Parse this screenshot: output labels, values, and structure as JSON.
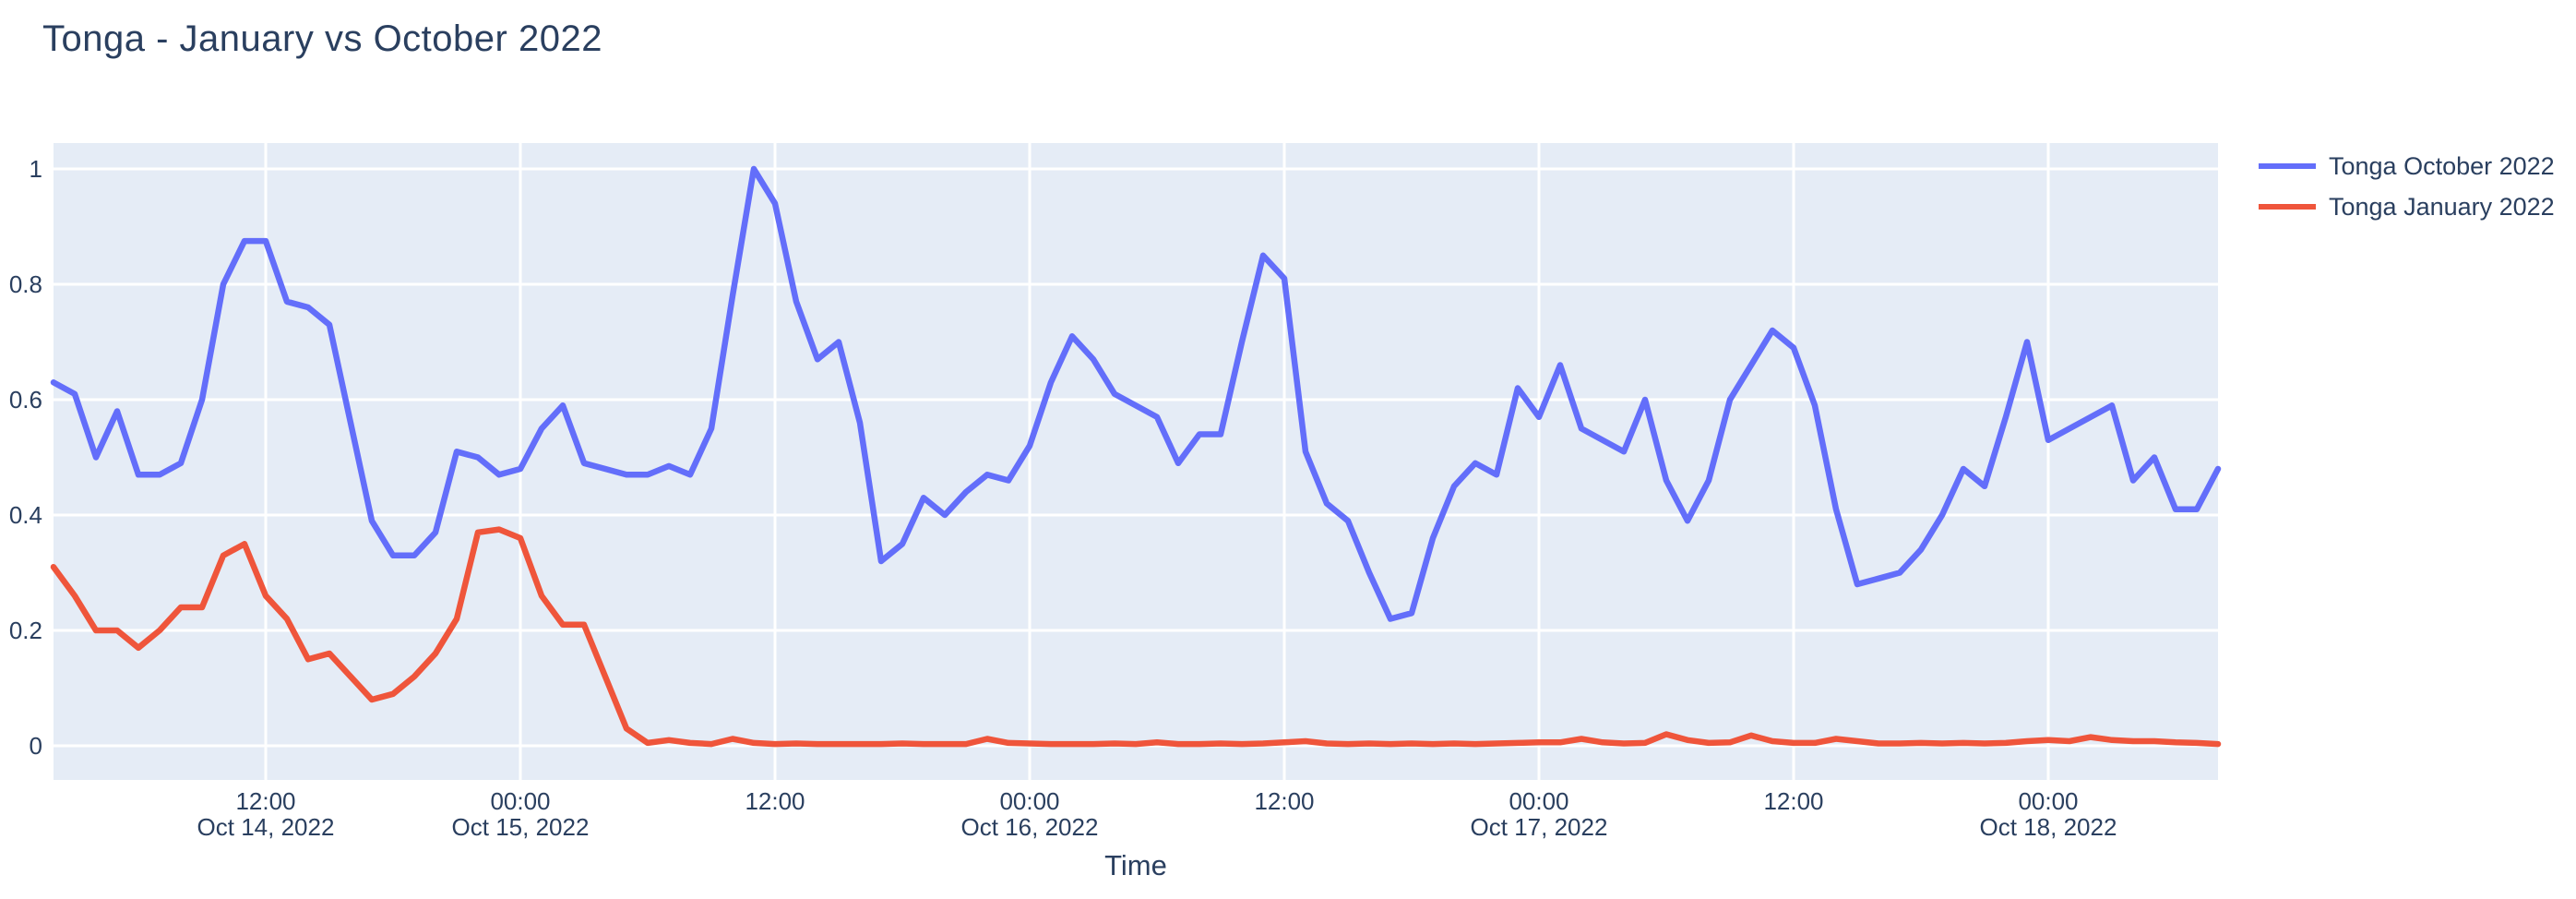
{
  "figure": {
    "title": "Tonga - January vs October 2022",
    "x_axis_title": "Time"
  },
  "legend": {
    "items": [
      {
        "label": "Tonga October 2022",
        "color": "#636EFA"
      },
      {
        "label": "Tonga January 2022",
        "color": "#EF553B"
      }
    ]
  },
  "colors": {
    "background": "#FFFFFF",
    "plot_background": "#E5ECF6",
    "grid": "#FFFFFF",
    "text": "#2a3f5f",
    "series_october": "#636EFA",
    "series_january": "#EF553B"
  },
  "chart_data": {
    "type": "line",
    "title": "Tonga - January vs October 2022",
    "xlabel": "Time",
    "ylabel": "",
    "ylim": [
      -0.059,
      1.045
    ],
    "grid": true,
    "legend_position": "right",
    "x_unit": "hourly timestamps, Oct 14 2022 02:00 - Oct 18 2022 08:00",
    "x": [
      "Oct 14 02:00",
      "Oct 14 03:00",
      "Oct 14 04:00",
      "Oct 14 05:00",
      "Oct 14 06:00",
      "Oct 14 07:00",
      "Oct 14 08:00",
      "Oct 14 09:00",
      "Oct 14 10:00",
      "Oct 14 11:00",
      "Oct 14 12:00",
      "Oct 14 13:00",
      "Oct 14 14:00",
      "Oct 14 15:00",
      "Oct 14 16:00",
      "Oct 14 17:00",
      "Oct 14 18:00",
      "Oct 14 19:00",
      "Oct 14 20:00",
      "Oct 14 21:00",
      "Oct 14 22:00",
      "Oct 14 23:00",
      "Oct 15 00:00",
      "Oct 15 01:00",
      "Oct 15 02:00",
      "Oct 15 03:00",
      "Oct 15 04:00",
      "Oct 15 05:00",
      "Oct 15 06:00",
      "Oct 15 07:00",
      "Oct 15 08:00",
      "Oct 15 09:00",
      "Oct 15 10:00",
      "Oct 15 11:00",
      "Oct 15 12:00",
      "Oct 15 13:00",
      "Oct 15 14:00",
      "Oct 15 15:00",
      "Oct 15 16:00",
      "Oct 15 17:00",
      "Oct 15 18:00",
      "Oct 15 19:00",
      "Oct 15 20:00",
      "Oct 15 21:00",
      "Oct 15 22:00",
      "Oct 15 23:00",
      "Oct 16 00:00",
      "Oct 16 01:00",
      "Oct 16 02:00",
      "Oct 16 03:00",
      "Oct 16 04:00",
      "Oct 16 05:00",
      "Oct 16 06:00",
      "Oct 16 07:00",
      "Oct 16 08:00",
      "Oct 16 09:00",
      "Oct 16 10:00",
      "Oct 16 11:00",
      "Oct 16 12:00",
      "Oct 16 13:00",
      "Oct 16 14:00",
      "Oct 16 15:00",
      "Oct 16 16:00",
      "Oct 16 17:00",
      "Oct 16 18:00",
      "Oct 16 19:00",
      "Oct 16 20:00",
      "Oct 16 21:00",
      "Oct 16 22:00",
      "Oct 16 23:00",
      "Oct 17 00:00",
      "Oct 17 01:00",
      "Oct 17 02:00",
      "Oct 17 03:00",
      "Oct 17 04:00",
      "Oct 17 05:00",
      "Oct 17 06:00",
      "Oct 17 07:00",
      "Oct 17 08:00",
      "Oct 17 09:00",
      "Oct 17 10:00",
      "Oct 17 11:00",
      "Oct 17 12:00",
      "Oct 17 13:00",
      "Oct 17 14:00",
      "Oct 17 15:00",
      "Oct 17 16:00",
      "Oct 17 17:00",
      "Oct 17 18:00",
      "Oct 17 19:00",
      "Oct 17 20:00",
      "Oct 17 21:00",
      "Oct 17 22:00",
      "Oct 17 23:00",
      "Oct 18 00:00",
      "Oct 18 01:00",
      "Oct 18 02:00",
      "Oct 18 03:00",
      "Oct 18 04:00",
      "Oct 18 05:00",
      "Oct 18 06:00",
      "Oct 18 07:00",
      "Oct 18 08:00"
    ],
    "series": [
      {
        "name": "Tonga October 2022",
        "color": "#636EFA",
        "values": [
          0.63,
          0.61,
          0.5,
          0.58,
          0.47,
          0.47,
          0.49,
          0.6,
          0.8,
          0.875,
          0.875,
          0.77,
          0.76,
          0.73,
          0.56,
          0.39,
          0.33,
          0.33,
          0.37,
          0.51,
          0.5,
          0.47,
          0.48,
          0.55,
          0.59,
          0.49,
          0.48,
          0.47,
          0.47,
          0.485,
          0.47,
          0.55,
          0.78,
          1.0,
          0.94,
          0.77,
          0.67,
          0.7,
          0.56,
          0.32,
          0.35,
          0.43,
          0.4,
          0.44,
          0.47,
          0.46,
          0.52,
          0.63,
          0.71,
          0.67,
          0.61,
          0.59,
          0.57,
          0.49,
          0.54,
          0.54,
          0.7,
          0.85,
          0.81,
          0.51,
          0.42,
          0.39,
          0.3,
          0.22,
          0.23,
          0.36,
          0.45,
          0.49,
          0.47,
          0.62,
          0.57,
          0.66,
          0.55,
          0.53,
          0.51,
          0.6,
          0.46,
          0.39,
          0.46,
          0.6,
          0.66,
          0.72,
          0.69,
          0.59,
          0.41,
          0.28,
          0.29,
          0.3,
          0.34,
          0.4,
          0.48,
          0.45,
          0.57,
          0.7,
          0.53,
          0.55,
          0.57,
          0.59,
          0.46,
          0.5,
          0.41,
          0.41,
          0.48
        ]
      },
      {
        "name": "Tonga January 2022",
        "color": "#EF553B",
        "values": [
          0.31,
          0.26,
          0.2,
          0.2,
          0.17,
          0.2,
          0.24,
          0.24,
          0.33,
          0.35,
          0.26,
          0.22,
          0.15,
          0.16,
          0.12,
          0.08,
          0.09,
          0.12,
          0.16,
          0.22,
          0.37,
          0.375,
          0.36,
          0.26,
          0.21,
          0.21,
          0.12,
          0.03,
          0.005,
          0.01,
          0.005,
          0.003,
          0.012,
          0.005,
          0.003,
          0.004,
          0.003,
          0.003,
          0.003,
          0.003,
          0.004,
          0.003,
          0.003,
          0.003,
          0.012,
          0.005,
          0.004,
          0.003,
          0.003,
          0.003,
          0.004,
          0.003,
          0.006,
          0.003,
          0.003,
          0.004,
          0.003,
          0.004,
          0.006,
          0.008,
          0.004,
          0.003,
          0.004,
          0.003,
          0.004,
          0.003,
          0.004,
          0.003,
          0.004,
          0.005,
          0.006,
          0.006,
          0.012,
          0.006,
          0.004,
          0.005,
          0.02,
          0.01,
          0.005,
          0.006,
          0.018,
          0.008,
          0.005,
          0.005,
          0.012,
          0.008,
          0.004,
          0.004,
          0.005,
          0.004,
          0.005,
          0.004,
          0.005,
          0.008,
          0.01,
          0.008,
          0.015,
          0.01,
          0.008,
          0.008,
          0.006,
          0.005,
          0.003
        ]
      }
    ],
    "x_ticks": [
      {
        "index": 10,
        "time": "12:00",
        "date": "Oct 14, 2022"
      },
      {
        "index": 22,
        "time": "00:00",
        "date": "Oct 15, 2022"
      },
      {
        "index": 34,
        "time": "12:00",
        "date": ""
      },
      {
        "index": 46,
        "time": "00:00",
        "date": "Oct 16, 2022"
      },
      {
        "index": 58,
        "time": "12:00",
        "date": ""
      },
      {
        "index": 70,
        "time": "00:00",
        "date": "Oct 17, 2022"
      },
      {
        "index": 82,
        "time": "12:00",
        "date": ""
      },
      {
        "index": 94,
        "time": "00:00",
        "date": "Oct 18, 2022"
      }
    ],
    "y_ticks": [
      {
        "value": 0,
        "label": "0"
      },
      {
        "value": 0.2,
        "label": "0.2"
      },
      {
        "value": 0.4,
        "label": "0.4"
      },
      {
        "value": 0.6,
        "label": "0.6"
      },
      {
        "value": 0.8,
        "label": "0.8"
      },
      {
        "value": 1,
        "label": "1"
      }
    ]
  }
}
